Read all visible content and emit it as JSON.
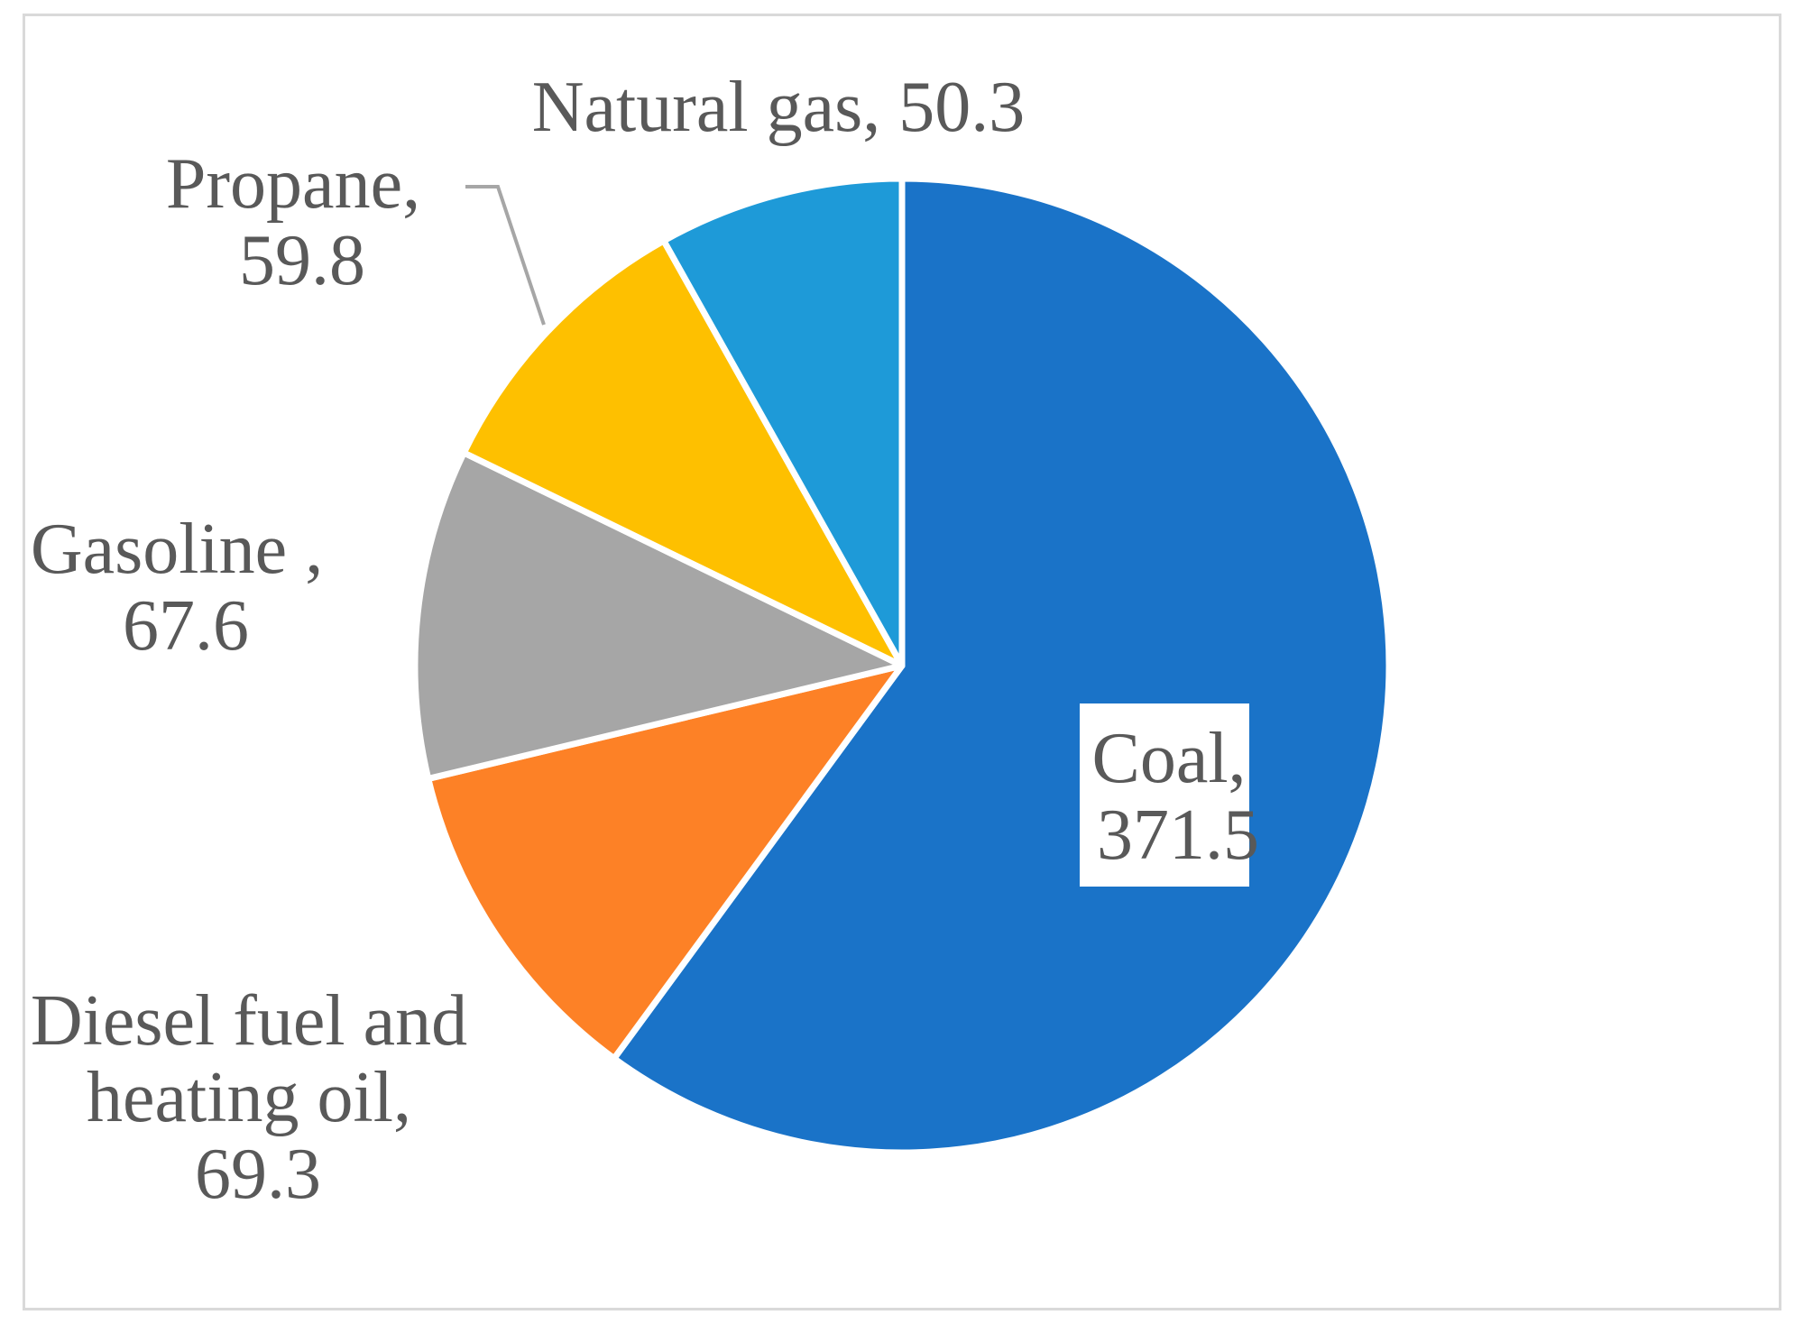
{
  "chart_data": {
    "type": "pie",
    "title": "",
    "slices": [
      {
        "label_line1": "Coal,",
        "label_line2": "371.5",
        "label_line3": "",
        "name": "Coal",
        "value": 371.5,
        "color": "#1a73c8"
      },
      {
        "label_line1": "Diesel fuel and",
        "label_line2": "heating oil,",
        "label_line3": "69.3",
        "name": "Diesel fuel and heating oil",
        "value": 69.3,
        "color": "#fd8126"
      },
      {
        "label_line1": "Gasoline ,",
        "label_line2": "67.6",
        "label_line3": "",
        "name": "Gasoline",
        "value": 67.6,
        "color": "#a6a6a6"
      },
      {
        "label_line1": "Propane,",
        "label_line2": "59.8",
        "label_line3": "",
        "name": "Propane",
        "value": 59.8,
        "color": "#fec000"
      },
      {
        "label_line1": "Natural gas, 50.3",
        "label_line2": "",
        "label_line3": "",
        "name": "Natural gas",
        "value": 50.3,
        "color": "#1e9ad8"
      }
    ],
    "legend": "none",
    "start_angle": "12 o'clock",
    "direction": "clockwise"
  },
  "colors": {
    "separator": "#ffffff",
    "label_text": "#595959",
    "leader_line": "#a6a6a6",
    "frame_border": "#d9d9d9"
  }
}
